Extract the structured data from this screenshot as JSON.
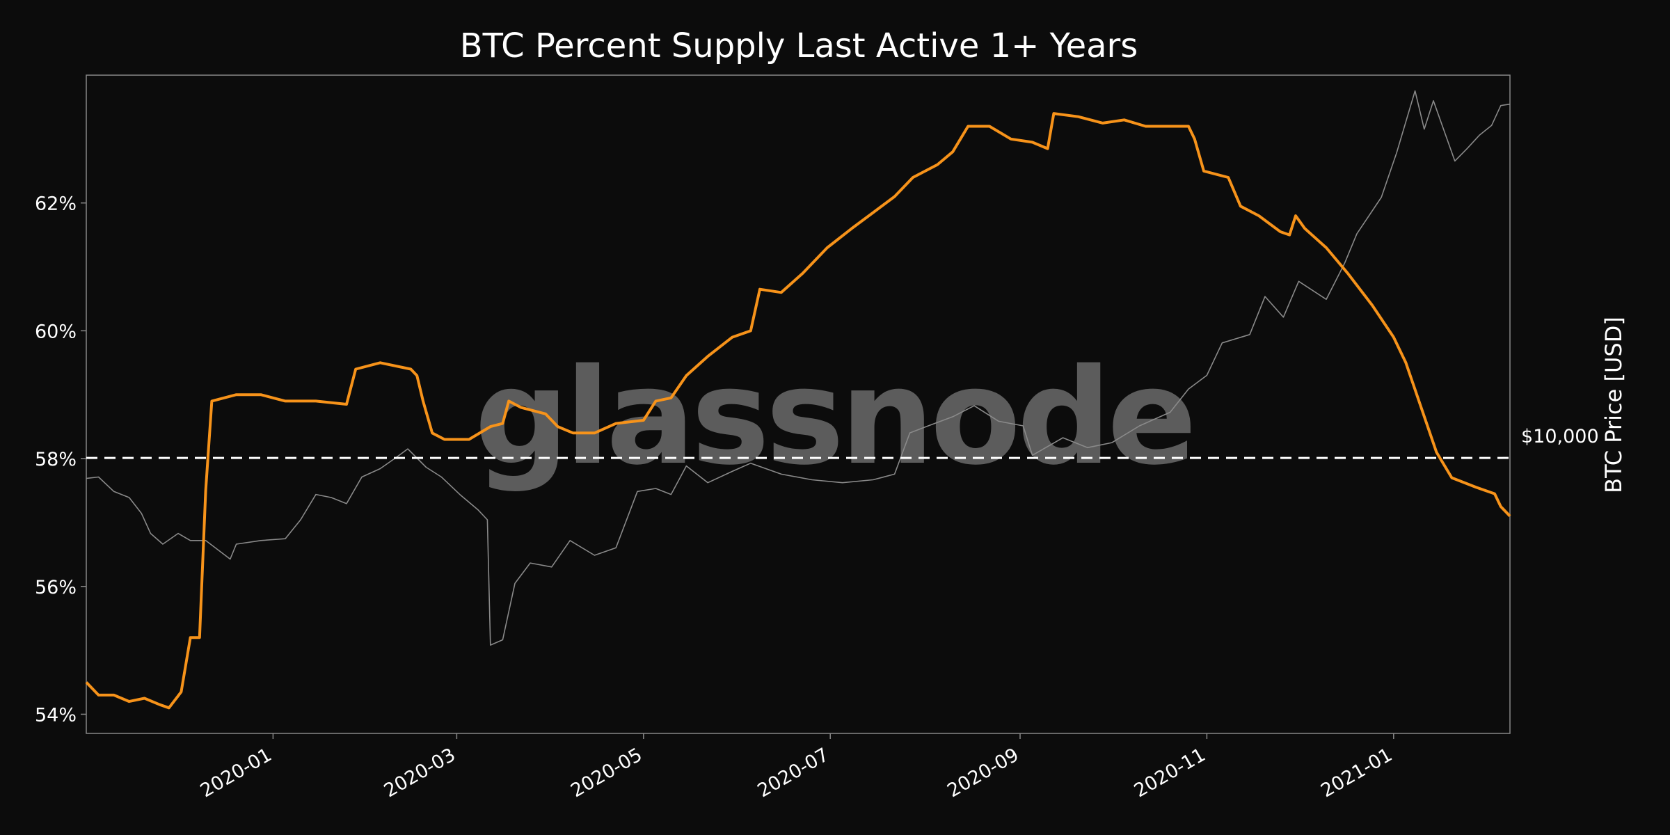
{
  "chart_data": {
    "type": "line",
    "title": "BTC Percent Supply Last Active 1+ Years",
    "watermark": "glassnode",
    "xlabel": "",
    "ylabel": "",
    "y2label": "BTC Price [USD]",
    "x_range": [
      "2019-11-01",
      "2021-02-08"
    ],
    "ylim": [
      53.7,
      64.0
    ],
    "y2lim": [
      3500,
      43000
    ],
    "y_ticks": [
      54,
      56,
      58,
      60,
      62
    ],
    "y_tick_labels": [
      "54%",
      "56%",
      "58%",
      "60%",
      "62%"
    ],
    "x_ticks": [
      "2020-01-01",
      "2020-03-01",
      "2020-05-01",
      "2020-07-01",
      "2020-09-01",
      "2020-11-01",
      "2021-01-01"
    ],
    "x_tick_labels": [
      "2020-01",
      "2020-03",
      "2020-05",
      "2020-07",
      "2020-09",
      "2020-11",
      "2021-01"
    ],
    "reference_line": {
      "label": "$10,000",
      "value": 10000,
      "axis": "right",
      "style": "dashed",
      "color": "#ffffff"
    },
    "grid": false,
    "series": [
      {
        "axis": "left",
        "color": "#f7931a",
        "points": [
          [
            "2019-11-01",
            54.5
          ],
          [
            "2019-11-05",
            54.3
          ],
          [
            "2019-11-10",
            54.3
          ],
          [
            "2019-11-15",
            54.2
          ],
          [
            "2019-11-20",
            54.25
          ],
          [
            "2019-11-25",
            54.15
          ],
          [
            "2019-11-28",
            54.1
          ],
          [
            "2019-12-02",
            54.35
          ],
          [
            "2019-12-05",
            55.2
          ],
          [
            "2019-12-08",
            55.2
          ],
          [
            "2019-12-10",
            57.5
          ],
          [
            "2019-12-12",
            58.9
          ],
          [
            "2019-12-20",
            59.0
          ],
          [
            "2019-12-28",
            59.0
          ],
          [
            "2020-01-05",
            58.9
          ],
          [
            "2020-01-15",
            58.9
          ],
          [
            "2020-01-25",
            58.85
          ],
          [
            "2020-01-28",
            59.4
          ],
          [
            "2020-02-05",
            59.5
          ],
          [
            "2020-02-15",
            59.4
          ],
          [
            "2020-02-17",
            59.3
          ],
          [
            "2020-02-19",
            58.9
          ],
          [
            "2020-02-22",
            58.4
          ],
          [
            "2020-02-26",
            58.3
          ],
          [
            "2020-03-05",
            58.3
          ],
          [
            "2020-03-12",
            58.5
          ],
          [
            "2020-03-16",
            58.55
          ],
          [
            "2020-03-18",
            58.9
          ],
          [
            "2020-03-22",
            58.8
          ],
          [
            "2020-03-30",
            58.7
          ],
          [
            "2020-04-03",
            58.5
          ],
          [
            "2020-04-08",
            58.4
          ],
          [
            "2020-04-15",
            58.4
          ],
          [
            "2020-04-22",
            58.55
          ],
          [
            "2020-05-01",
            58.6
          ],
          [
            "2020-05-05",
            58.9
          ],
          [
            "2020-05-10",
            58.95
          ],
          [
            "2020-05-15",
            59.3
          ],
          [
            "2020-05-22",
            59.6
          ],
          [
            "2020-05-30",
            59.9
          ],
          [
            "2020-06-05",
            60.0
          ],
          [
            "2020-06-08",
            60.65
          ],
          [
            "2020-06-15",
            60.6
          ],
          [
            "2020-06-22",
            60.9
          ],
          [
            "2020-06-30",
            61.3
          ],
          [
            "2020-07-08",
            61.6
          ],
          [
            "2020-07-15",
            61.85
          ],
          [
            "2020-07-22",
            62.1
          ],
          [
            "2020-07-28",
            62.4
          ],
          [
            "2020-08-05",
            62.6
          ],
          [
            "2020-08-10",
            62.8
          ],
          [
            "2020-08-15",
            63.2
          ],
          [
            "2020-08-22",
            63.2
          ],
          [
            "2020-08-29",
            63.0
          ],
          [
            "2020-09-05",
            62.95
          ],
          [
            "2020-09-10",
            62.85
          ],
          [
            "2020-09-12",
            63.4
          ],
          [
            "2020-09-20",
            63.35
          ],
          [
            "2020-09-28",
            63.25
          ],
          [
            "2020-10-05",
            63.3
          ],
          [
            "2020-10-12",
            63.2
          ],
          [
            "2020-10-20",
            63.2
          ],
          [
            "2020-10-26",
            63.2
          ],
          [
            "2020-10-28",
            63.0
          ],
          [
            "2020-10-31",
            62.5
          ],
          [
            "2020-11-08",
            62.4
          ],
          [
            "2020-11-12",
            61.95
          ],
          [
            "2020-11-18",
            61.8
          ],
          [
            "2020-11-25",
            61.55
          ],
          [
            "2020-11-28",
            61.5
          ],
          [
            "2020-11-30",
            61.8
          ],
          [
            "2020-12-03",
            61.6
          ],
          [
            "2020-12-10",
            61.3
          ],
          [
            "2020-12-17",
            60.9
          ],
          [
            "2020-12-25",
            60.4
          ],
          [
            "2021-01-01",
            59.9
          ],
          [
            "2021-01-05",
            59.5
          ],
          [
            "2021-01-10",
            58.8
          ],
          [
            "2021-01-15",
            58.1
          ],
          [
            "2021-01-20",
            57.7
          ],
          [
            "2021-01-28",
            57.55
          ],
          [
            "2021-02-03",
            57.45
          ],
          [
            "2021-02-05",
            57.25
          ],
          [
            "2021-02-08",
            57.1
          ]
        ]
      },
      {
        "axis": "right",
        "color": "#8a8a8a",
        "points": [
          [
            "2019-11-01",
            9250
          ],
          [
            "2019-11-05",
            9300
          ],
          [
            "2019-11-10",
            8800
          ],
          [
            "2019-11-15",
            8600
          ],
          [
            "2019-11-19",
            8100
          ],
          [
            "2019-11-22",
            7500
          ],
          [
            "2019-11-26",
            7200
          ],
          [
            "2019-12-01",
            7500
          ],
          [
            "2019-12-05",
            7300
          ],
          [
            "2019-12-10",
            7300
          ],
          [
            "2019-12-18",
            6800
          ],
          [
            "2019-12-20",
            7200
          ],
          [
            "2019-12-28",
            7300
          ],
          [
            "2020-01-05",
            7350
          ],
          [
            "2020-01-10",
            7900
          ],
          [
            "2020-01-15",
            8700
          ],
          [
            "2020-01-20",
            8600
          ],
          [
            "2020-01-25",
            8400
          ],
          [
            "2020-01-30",
            9300
          ],
          [
            "2020-02-05",
            9600
          ],
          [
            "2020-02-10",
            10000
          ],
          [
            "2020-02-14",
            10350
          ],
          [
            "2020-02-20",
            9650
          ],
          [
            "2020-02-25",
            9300
          ],
          [
            "2020-03-02",
            8700
          ],
          [
            "2020-03-08",
            8200
          ],
          [
            "2020-03-11",
            7900
          ],
          [
            "2020-03-12",
            4900
          ],
          [
            "2020-03-16",
            5000
          ],
          [
            "2020-03-20",
            6200
          ],
          [
            "2020-03-25",
            6700
          ],
          [
            "2020-04-01",
            6600
          ],
          [
            "2020-04-07",
            7300
          ],
          [
            "2020-04-15",
            6900
          ],
          [
            "2020-04-22",
            7100
          ],
          [
            "2020-04-29",
            8800
          ],
          [
            "2020-05-05",
            8900
          ],
          [
            "2020-05-10",
            8700
          ],
          [
            "2020-05-15",
            9700
          ],
          [
            "2020-05-22",
            9100
          ],
          [
            "2020-05-30",
            9500
          ],
          [
            "2020-06-05",
            9800
          ],
          [
            "2020-06-15",
            9400
          ],
          [
            "2020-06-25",
            9200
          ],
          [
            "2020-07-05",
            9100
          ],
          [
            "2020-07-15",
            9200
          ],
          [
            "2020-07-22",
            9400
          ],
          [
            "2020-07-27",
            11000
          ],
          [
            "2020-08-02",
            11300
          ],
          [
            "2020-08-10",
            11700
          ],
          [
            "2020-08-17",
            12200
          ],
          [
            "2020-08-25",
            11500
          ],
          [
            "2020-09-02",
            11300
          ],
          [
            "2020-09-05",
            10100
          ],
          [
            "2020-09-15",
            10800
          ],
          [
            "2020-09-23",
            10400
          ],
          [
            "2020-10-01",
            10600
          ],
          [
            "2020-10-10",
            11300
          ],
          [
            "2020-10-20",
            11900
          ],
          [
            "2020-10-26",
            13000
          ],
          [
            "2020-11-01",
            13700
          ],
          [
            "2020-11-06",
            15500
          ],
          [
            "2020-11-15",
            16000
          ],
          [
            "2020-11-20",
            18500
          ],
          [
            "2020-11-26",
            17100
          ],
          [
            "2020-12-01",
            19600
          ],
          [
            "2020-12-10",
            18300
          ],
          [
            "2020-12-16",
            21000
          ],
          [
            "2020-12-20",
            23500
          ],
          [
            "2020-12-28",
            27000
          ],
          [
            "2021-01-02",
            32000
          ],
          [
            "2021-01-08",
            40500
          ],
          [
            "2021-01-11",
            35000
          ],
          [
            "2021-01-14",
            39000
          ],
          [
            "2021-01-21",
            31000
          ],
          [
            "2021-01-25",
            32500
          ],
          [
            "2021-01-29",
            34200
          ],
          [
            "2021-02-02",
            35500
          ],
          [
            "2021-02-05",
            38300
          ],
          [
            "2021-02-08",
            38500
          ]
        ]
      }
    ]
  }
}
